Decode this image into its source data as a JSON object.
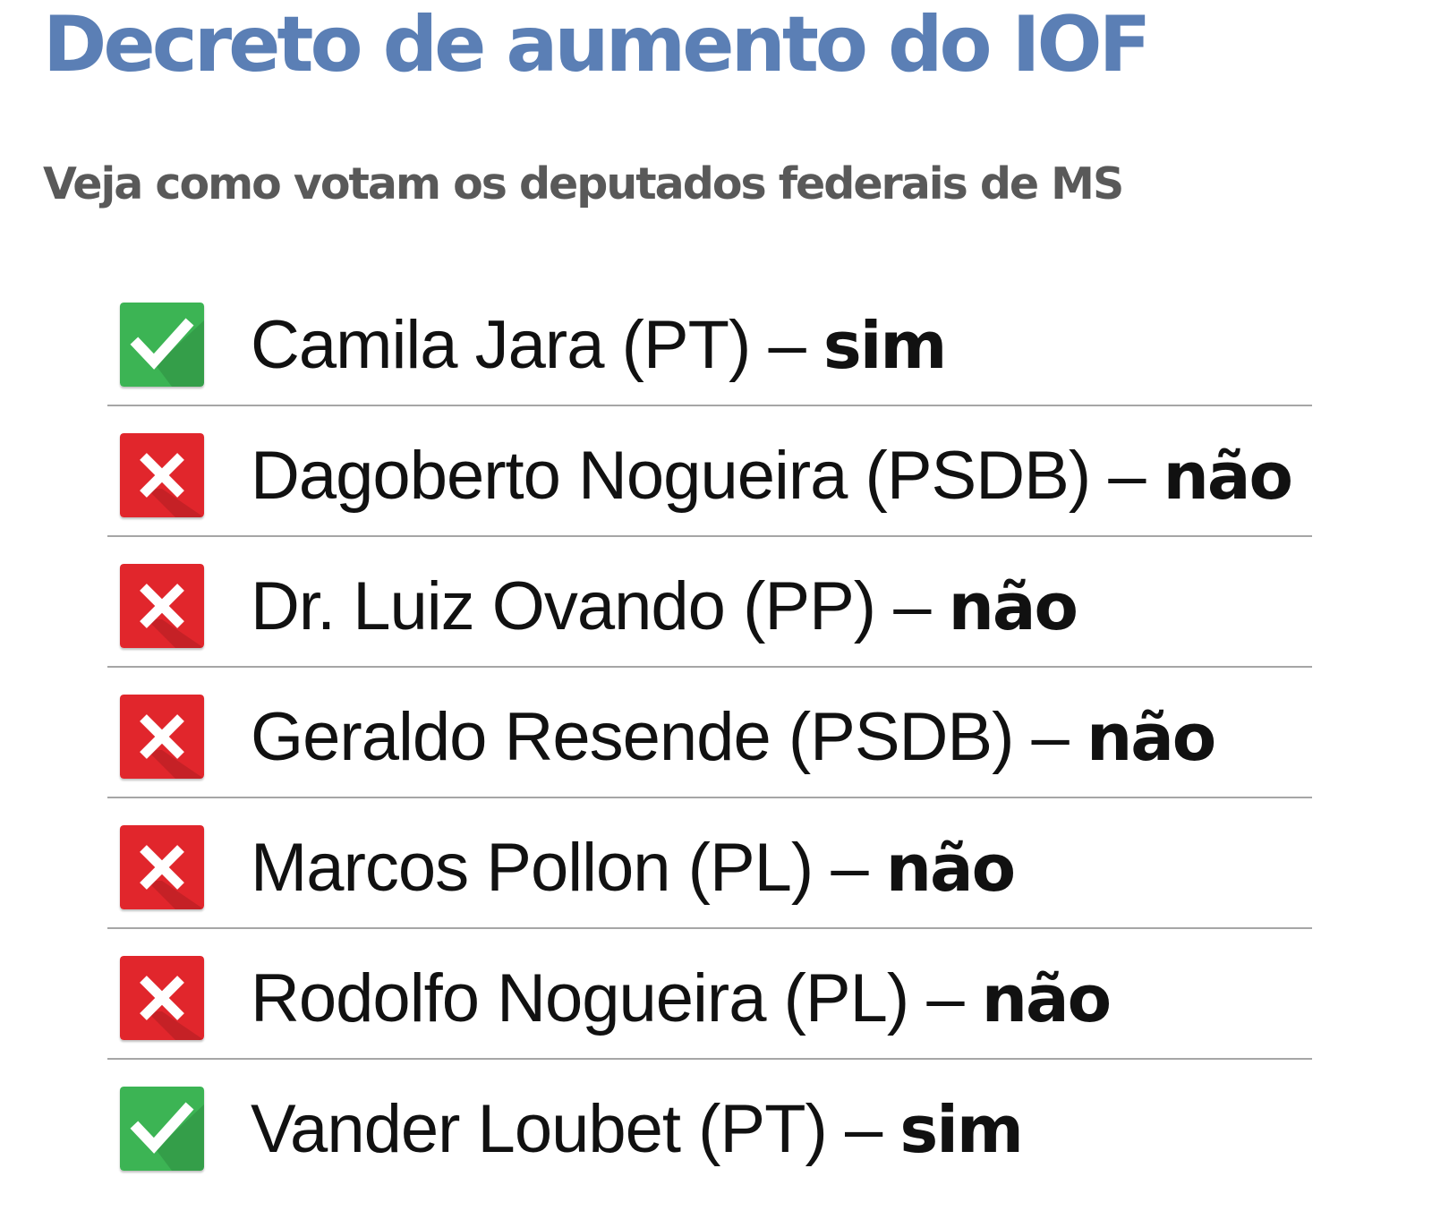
{
  "header": {
    "title": "Decreto de aumento do IOF",
    "subtitle": "Veja como votam os deputados federais de MS"
  },
  "votes": [
    {
      "name": "Camila Jara (PT)",
      "separator": "–",
      "vote": "sim",
      "icon": "check-icon"
    },
    {
      "name": "Dagoberto Nogueira (PSDB)",
      "separator": "–",
      "vote": "não",
      "icon": "x-icon"
    },
    {
      "name": "Dr. Luiz Ovando (PP)",
      "separator": "–",
      "vote": "não",
      "icon": "x-icon"
    },
    {
      "name": "Geraldo Resende (PSDB)",
      "separator": "–",
      "vote": "não",
      "icon": "x-icon"
    },
    {
      "name": "Marcos Pollon (PL)",
      "separator": "–",
      "vote": "não",
      "icon": "x-icon"
    },
    {
      "name": "Rodolfo Nogueira (PL)",
      "separator": "–",
      "vote": "não",
      "icon": "x-icon"
    },
    {
      "name": "Vander Loubet (PT)",
      "separator": "–",
      "vote": "sim",
      "icon": "check-icon"
    }
  ],
  "colors": {
    "title": "#5b7fb5",
    "subtitle": "#595959",
    "text": "#111111",
    "yes_green": "#3cb454",
    "no_red": "#e1262c",
    "divider": "#a6a6a6"
  }
}
